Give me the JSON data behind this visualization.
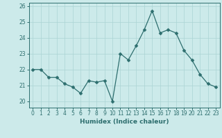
{
  "x": [
    0,
    1,
    2,
    3,
    4,
    5,
    6,
    7,
    8,
    9,
    10,
    11,
    12,
    13,
    14,
    15,
    16,
    17,
    18,
    19,
    20,
    21,
    22,
    23
  ],
  "y": [
    22.0,
    22.0,
    21.5,
    21.5,
    21.1,
    20.9,
    20.5,
    21.3,
    21.2,
    21.3,
    20.0,
    23.0,
    22.6,
    23.5,
    24.5,
    25.7,
    24.3,
    24.5,
    24.3,
    23.2,
    22.6,
    21.7,
    21.1,
    20.9
  ],
  "line_color": "#2d6e6e",
  "marker": "D",
  "markersize": 2.5,
  "bg_color": "#cceaea",
  "grid_color": "#aad4d4",
  "xlabel": "Humidex (Indice chaleur)",
  "ylim": [
    19.6,
    26.2
  ],
  "xlim": [
    -0.5,
    23.5
  ],
  "yticks": [
    20,
    21,
    22,
    23,
    24,
    25,
    26
  ],
  "xticks": [
    0,
    1,
    2,
    3,
    4,
    5,
    6,
    7,
    8,
    9,
    10,
    11,
    12,
    13,
    14,
    15,
    16,
    17,
    18,
    19,
    20,
    21,
    22,
    23
  ],
  "label_fontsize": 6.5,
  "tick_fontsize": 5.5
}
